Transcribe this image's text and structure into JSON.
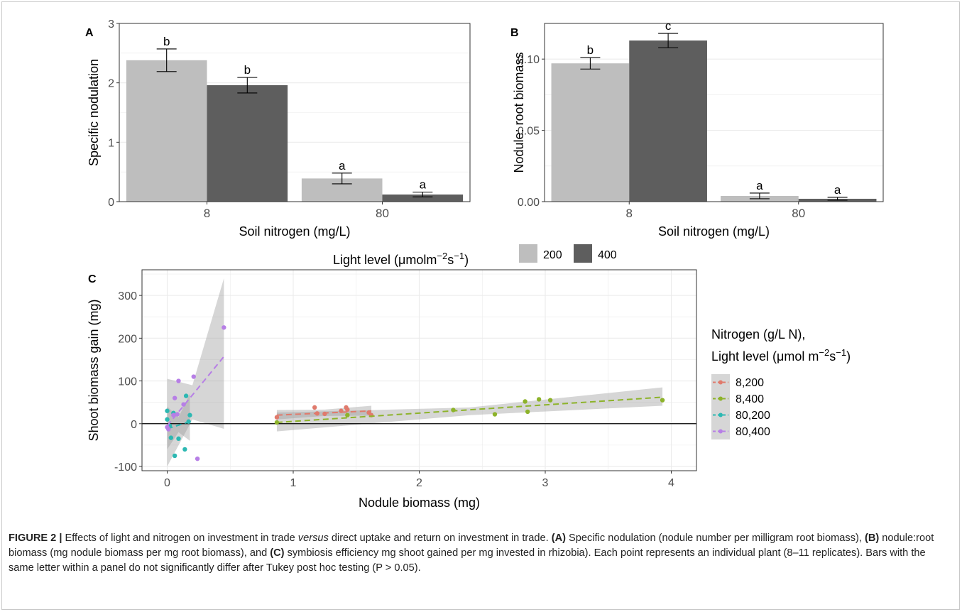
{
  "chart_data": [
    {
      "panel": "A",
      "type": "bar",
      "categories": [
        "8",
        "80"
      ],
      "xlabel": "Soil nitrogen (mg/L)",
      "ylabel": "Specific nodulation",
      "ylim": [
        0,
        3
      ],
      "yticks": [
        "0",
        "1",
        "2",
        "3"
      ],
      "series": [
        {
          "name": "200",
          "values": [
            2.38,
            0.39
          ],
          "err": [
            0.19,
            0.09
          ],
          "letters": [
            "b",
            "a"
          ]
        },
        {
          "name": "400",
          "values": [
            1.96,
            0.12
          ],
          "err": [
            0.13,
            0.04
          ],
          "letters": [
            "b",
            "a"
          ]
        }
      ]
    },
    {
      "panel": "B",
      "type": "bar",
      "categories": [
        "8",
        "80"
      ],
      "xlabel": "Soil nitrogen (mg/L)",
      "ylabel": "Nodule: root biomass",
      "ylim": [
        0,
        0.125
      ],
      "yticks": [
        "0.00",
        "0.05",
        "0.10"
      ],
      "series": [
        {
          "name": "200",
          "values": [
            0.097,
            0.004
          ],
          "err": [
            0.004,
            0.002
          ],
          "letters": [
            "b",
            "a"
          ]
        },
        {
          "name": "400",
          "values": [
            0.113,
            0.002
          ],
          "err": [
            0.005,
            0.001
          ],
          "letters": [
            "c",
            "a"
          ]
        }
      ]
    },
    {
      "panel": "C",
      "type": "scatter",
      "xlabel": "Nodule biomass (mg)",
      "ylabel": "Shoot biomass gain (mg)",
      "xlim": [
        -0.2,
        4.2
      ],
      "ylim": [
        -110,
        360
      ],
      "xticks": [
        "0",
        "1",
        "2",
        "3",
        "4"
      ],
      "yticks": [
        "-100",
        "0",
        "100",
        "200",
        "300"
      ],
      "legend_title": "Nitrogen (g/L N),",
      "legend_title_2": "Light level (μmol  m",
      "legend_title_2_sup": "−2",
      "legend_title_2_mid": "s",
      "legend_title_2_sup2": "−1",
      "legend_title_2_end": ")",
      "series": [
        {
          "name": "8,200",
          "color": "#e07a6c",
          "points": [
            [
              0.87,
              15
            ],
            [
              1.17,
              38
            ],
            [
              1.19,
              24
            ],
            [
              1.25,
              23
            ],
            [
              1.38,
              30
            ],
            [
              1.42,
              38
            ],
            [
              1.43,
              33
            ],
            [
              1.6,
              26
            ],
            [
              1.62,
              20
            ]
          ],
          "fit": [
            [
              0.87,
              20
            ],
            [
              1.62,
              30
            ]
          ],
          "band": [
            [
              0.87,
              10,
              32
            ],
            [
              1.25,
              18,
              33
            ],
            [
              1.62,
              19,
              42
            ]
          ]
        },
        {
          "name": "8,400",
          "color": "#8db32a",
          "points": [
            [
              0.87,
              3
            ],
            [
              1.43,
              20
            ],
            [
              2.27,
              32
            ],
            [
              2.6,
              22
            ],
            [
              2.84,
              52
            ],
            [
              2.86,
              28
            ],
            [
              2.95,
              57
            ],
            [
              3.04,
              55
            ],
            [
              3.93,
              55
            ]
          ],
          "fit": [
            [
              0.87,
              3
            ],
            [
              3.93,
              62
            ]
          ],
          "band": [
            [
              0.87,
              -18,
              26
            ],
            [
              2.4,
              20,
              38
            ],
            [
              3.93,
              42,
              85
            ]
          ]
        },
        {
          "name": "80,200",
          "color": "#2cb8b2",
          "points": [
            [
              0.0,
              30
            ],
            [
              0.0,
              10
            ],
            [
              0.02,
              -5
            ],
            [
              0.03,
              -33
            ],
            [
              0.05,
              25
            ],
            [
              0.06,
              -75
            ],
            [
              0.09,
              -35
            ],
            [
              0.14,
              -60
            ],
            [
              0.15,
              65
            ],
            [
              0.17,
              5
            ],
            [
              0.18,
              20
            ]
          ],
          "fit": [
            [
              0.0,
              -12
            ],
            [
              0.18,
              5
            ]
          ],
          "band": [
            [
              0.0,
              -60,
              40
            ],
            [
              0.09,
              -20,
              15
            ],
            [
              0.18,
              -40,
              70
            ]
          ]
        },
        {
          "name": "80,400",
          "color": "#b77fe6",
          "points": [
            [
              0.0,
              -8
            ],
            [
              0.01,
              -13
            ],
            [
              0.05,
              20
            ],
            [
              0.06,
              60
            ],
            [
              0.08,
              22
            ],
            [
              0.09,
              100
            ],
            [
              0.13,
              45
            ],
            [
              0.21,
              110
            ],
            [
              0.24,
              -82
            ],
            [
              0.45,
              225
            ]
          ],
          "fit": [
            [
              0.0,
              -5
            ],
            [
              0.45,
              157
            ]
          ],
          "band": [
            [
              0.0,
              -100,
              105
            ],
            [
              0.2,
              10,
              90
            ],
            [
              0.45,
              -12,
              340
            ]
          ]
        }
      ]
    }
  ],
  "shared_legend": {
    "title_pre": "Light level (μmolm",
    "title_sup1": "−2",
    "title_mid": "s",
    "title_sup2": "−1",
    "title_end": ")",
    "items": [
      "200",
      "400"
    ],
    "colors": {
      "200": "#bebebe",
      "400": "#5e5e5e"
    }
  },
  "caption": {
    "label": "FIGURE 2 |",
    "text1": " Effects of light and nitrogen on investment in trade ",
    "italic": "versus",
    "text2": " direct uptake and return on investment in trade. ",
    "a_label": "(A)",
    "text3": " Specific nodulation (nodule number per milligram root biomass), ",
    "b_label": "(B)",
    "text4": " nodule:root biomass (mg nodule biomass per mg root biomass), and ",
    "c_label": "(C)",
    "text5": " symbiosis efficiency mg shoot gained per mg invested in rhizobia). Each point represents an individual plant (8–11 replicates). Bars with the same letter within a panel do not significantly differ after Tukey post hoc testing (P > 0.05)."
  },
  "colors": {
    "grid": "#ebebeb",
    "panel_border": "#333333",
    "axis_text": "#4d4d4d"
  }
}
